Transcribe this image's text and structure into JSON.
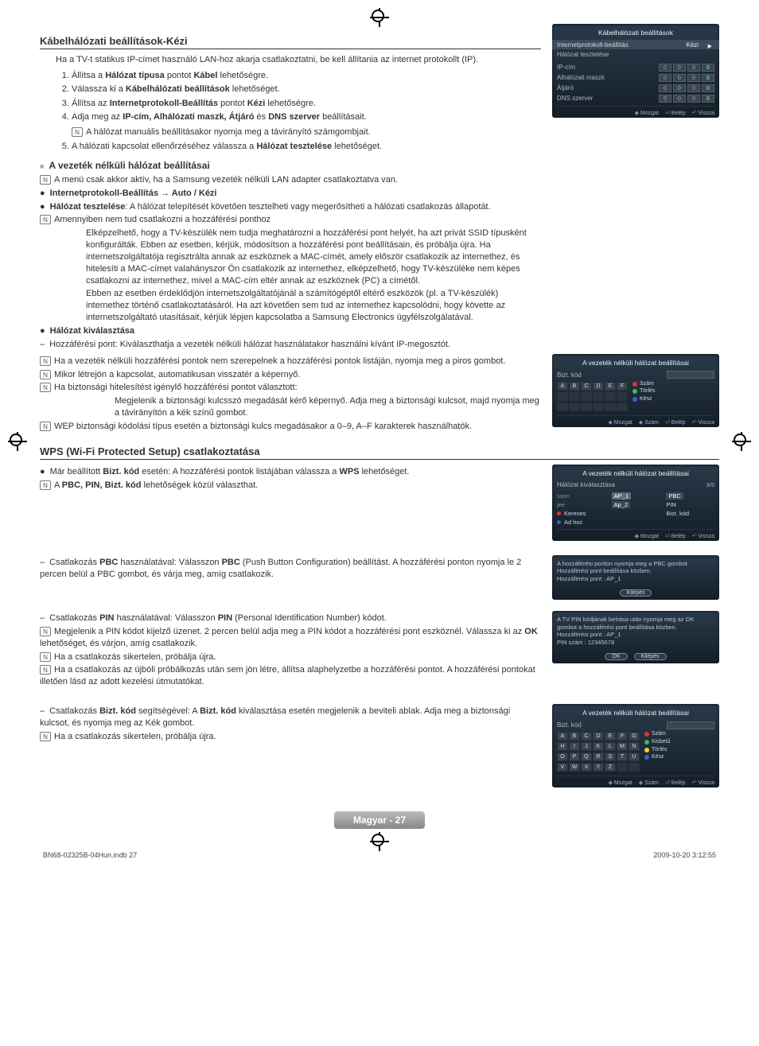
{
  "page": {
    "label": "Magyar - 27",
    "indb": "BN68-02325B-04Hun.indb   27",
    "timestamp": "2009-10-20   3:12:55"
  },
  "section1": {
    "title": "Kábelhálózati beállítások-Kézi",
    "intro": "Ha a TV-t statikus IP-címet használó LAN-hoz akarja csatlakoztatni, be kell állítania az internet protokollt (IP).",
    "steps": [
      "Állítsa a <b>Hálózat típusa</b> pontot <b>Kábel</b> lehetőségre.",
      "Válassza ki a <b>Kábelhálózati beállítások</b> lehetőséget.",
      "Állítsa az <b>Internetprotokoll-Beállítás</b> pontot <b>Kézi</b> lehetőségre.",
      "Adja meg az <b>IP-cím, Alhálózati maszk, Átjáró</b> és <b>DNS szerver</b> beállításait.",
      "A hálózati kapcsolat ellenőrzéséhez válassza a <b>Hálózat tesztelése</b> lehetőséget."
    ],
    "step4note": "A hálózat manuális beállításakor nyomja meg a távirányító számgombjait.",
    "sub_title": "A vezeték nélküli hálózat beállításai",
    "sub_note": "A menü csak akkor aktív, ha a Samsung vezeték nélküli LAN adapter csatlakoztatva van.",
    "bullets": [
      "<b>Internetprotokoll-Beállítás → Auto / Kézi</b>",
      "<b>Hálózat tesztelése</b>: A hálózat telepítését követően tesztelheti vagy megerősítheti a hálózati csatlakozás állapotát."
    ],
    "ap_note": "Amennyiben nem tud csatlakozni a hozzáférési ponthoz",
    "ap_para1": "Elképzelhető, hogy a TV-készülék nem tudja meghatározni a hozzáférési pont helyét, ha azt privát SSID típusként konfigurálták. Ebben az esetben, kérjük, módosítson a hozzáférési pont beállításain, és próbálja újra. Ha internetszolgáltatója regisztrálta annak az eszköznek a MAC-címét, amely először csatlakozik az internethez, és hitelesíti a MAC-címet valahányszor Ön csatlakozik az internethez, elképzelhető, hogy TV-készüléke nem képes csatlakozni az internethez, mivel a MAC-cím eltér annak az eszköznek (PC) a címétől.",
    "ap_para2": "Ebben az esetben érdeklődjön internetszolgáltatójánál a számítógéptől eltérő eszközök (pl. a TV-készülék) internethez történő csatlakoztatásáról. Ha azt követően sem tud az internethez kapcsolódni, hogy követte az internetszolgáltató utasításait, kérjük lépjen kapcsolatba a Samsung Electronics ügyfélszolgálatával.",
    "net_sel": "Hálózat kiválasztása",
    "net_sel_sub": "Hozzáférési pont: Kiválaszthatja a vezeték nélküli hálózat használatakor használni kívánt IP-megosztót.",
    "net_notes": [
      "Ha a vezeték nélküli hozzáférési pontok nem szerepelnek a hozzáférési pontok listáján, nyomja meg a piros gombot.",
      "Mikor létrejön a kapcsolat, automatikusan visszatér a képernyő.",
      "Ha biztonsági hitelesítést igénylő hozzáférési pontot választott:"
    ],
    "net_note3_body": "Megjelenik a biztonsági kulcsszó megadását kérő képernyő. Adja meg a biztonsági kulcsot, majd nyomja meg a távirányítón a kék színű gombot.",
    "net_note4": "WEP biztonsági kódolási típus esetén a biztonsági kulcs megadásakor a 0–9, A–F karakterek használhatók."
  },
  "section2": {
    "title": "WPS (Wi-Fi Protected Setup) csatlakoztatása",
    "b1": "Már beállított <b>Bizt. kód</b> esetén: A hozzáférési pontok listájában válassza a <b>WPS</b> lehetőséget.",
    "b1_note": "A <b>PBC, PIN, Bizt. kód</b> lehetőségek közül választhat.",
    "pbc": "Csatlakozás <b>PBC</b> használatával: Válasszon <b>PBC</b> (Push Button Configuration) beállítást. A hozzáférési ponton nyomja le 2 percen belül a PBC gombot, és várja meg, amíg csatlakozik.",
    "pin": "Csatlakozás <b>PIN</b> használatával: Válasszon <b>PIN</b> (Personal Identification Number) kódot.",
    "pin_n1": "Megjelenik a PIN kódot kijelző üzenet. 2 percen belül adja meg a PIN kódot a hozzáférési pont eszköznél. Válassza ki az <b>OK</b> lehetőséget, és várjon, amíg csatlakozik.",
    "pin_n2": "Ha a csatlakozás sikertelen, próbálja újra.",
    "pin_n3": "Ha a csatlakozás az újbóli próbálkozás után sem jön létre, állítsa alaphelyzetbe a hozzáférési pontot. A hozzáférési pontokat illetően lásd az adott kezelési útmutatókat.",
    "bk": "Csatlakozás  <b>Bizt. kód</b> segítségével: A <b>Bizt. kód</b> kiválasztása esetén megjelenik a beviteli ablak. Adja meg a biztonsági kulcsot, és nyomja meg az Kék gombot.",
    "bk_n1": "Ha a csatlakozás sikertelen, próbálja újra."
  },
  "osd1": {
    "title": "Kábelhálózati beállítások",
    "rows": [
      {
        "label": "Internetprotokoll-beállítás",
        "value": "Kézi"
      },
      {
        "label": "Hálózat tesztelése",
        "value": ""
      }
    ],
    "ip_labels": [
      "IP-cím",
      "Alhálózati maszk",
      "Átjáró",
      "DNS szerver"
    ],
    "ip_values": [
      [
        "0",
        "0",
        "0",
        "0"
      ],
      [
        "0",
        "0",
        "0",
        "0"
      ],
      [
        "0",
        "0",
        "0",
        "0"
      ],
      [
        "0",
        "0",
        "0",
        "0"
      ]
    ],
    "footer": [
      "Mozgat",
      "Belép",
      "Vissza"
    ]
  },
  "osd2": {
    "title": "A vezeték nélküli hálózat beállításai",
    "label": "Bizt. kód",
    "keys_row": [
      "A",
      "B",
      "C",
      "D",
      "E",
      "F"
    ],
    "legend": [
      {
        "color": "red",
        "text": "Szám"
      },
      {
        "color": "green",
        "text": "Törlés"
      },
      {
        "color": "blue",
        "text": "Kész"
      }
    ],
    "footer": [
      "Mozgat",
      "Szám",
      "Belép",
      "Vissza"
    ]
  },
  "osd3": {
    "title": "A vezeték nélküli hálózat beállításai",
    "row_label": "Hálózat kiválasztása",
    "count": "3/9",
    "left_items": [
      "sson",
      "jee",
      "Kereses",
      "Ad hoc"
    ],
    "sel_items": [
      "AP_1",
      "Ap_2"
    ],
    "right_items": [
      "PBC",
      "PIN",
      "Bizt. kód"
    ],
    "footer": [
      "Mozgat",
      "Belép",
      "Vissza"
    ]
  },
  "osd4": {
    "msg1": "A hozzáférési ponton nyomja meg a PBC gombot.",
    "msg2": "Hozzáférési pont beállítása közben.",
    "msg3": "Hozzáférési pont : AP_1",
    "btn": "Kilépés"
  },
  "osd5": {
    "msg1": "A TV PIN kódjának beírása után nyomja meg az OK gombot a hozzáférési pont beállítása közben.",
    "msg2": "Hozzáférési pont : AP_1",
    "msg3": "PIN szám : 12345678",
    "btn1": "OK",
    "btn2": "Kilépés"
  },
  "osd6": {
    "title": "A vezeték nélküli hálózat beállításai",
    "label": "Bizt. kód",
    "rows": [
      [
        "A",
        "B",
        "C",
        "D",
        "E",
        "F",
        "G"
      ],
      [
        "H",
        "I",
        "J",
        "K",
        "L",
        "M",
        "N"
      ],
      [
        "O",
        "P",
        "Q",
        "R",
        "S",
        "T",
        "U"
      ],
      [
        "V",
        "W",
        "X",
        "Y",
        "Z",
        "",
        ""
      ]
    ],
    "legend": [
      {
        "color": "red",
        "text": "Szám"
      },
      {
        "color": "green",
        "text": "Kisbetű"
      },
      {
        "color": "yellow",
        "text": "Törlés"
      },
      {
        "color": "blue",
        "text": "Kész"
      }
    ],
    "footer": [
      "Mozgat",
      "Szám",
      "Belép",
      "Vissza"
    ]
  }
}
